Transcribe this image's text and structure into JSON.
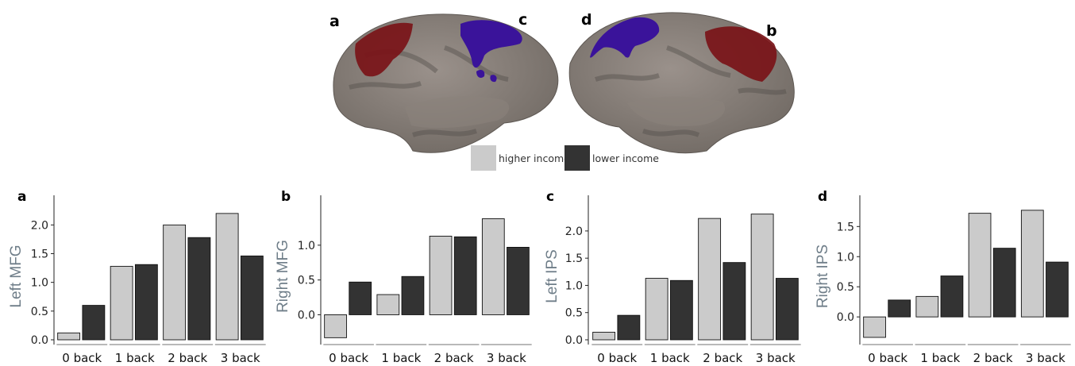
{
  "figure": {
    "brain_labels": [
      "a",
      "c",
      "d",
      "b"
    ],
    "legend": [
      {
        "label": "higher income",
        "color": "#cbcbcb"
      },
      {
        "label": "lower income",
        "color": "#333333"
      }
    ],
    "region_colors": {
      "frontal": "#7a1418",
      "parietal": "#3a139a"
    }
  },
  "chart_data": [
    {
      "type": "bar",
      "panel": "a",
      "ylabel": "Left MFG",
      "categories": [
        "0 back",
        "1 back",
        "2 back",
        "3 back"
      ],
      "series": [
        {
          "name": "higher income",
          "color": "#cbcbcb",
          "values": [
            0.12,
            1.28,
            2.0,
            2.2
          ]
        },
        {
          "name": "lower income",
          "color": "#333333",
          "values": [
            0.6,
            1.31,
            1.78,
            1.46
          ]
        }
      ],
      "ylim": [
        0,
        2.35
      ],
      "yticks": [
        "0.0",
        "0.5",
        "1.0",
        "1.5",
        "2.0"
      ],
      "grid": false
    },
    {
      "type": "bar",
      "panel": "b",
      "ylabel": "Right MFG",
      "categories": [
        "0 back",
        "1 back",
        "2 back",
        "3 back"
      ],
      "series": [
        {
          "name": "higher income",
          "color": "#cbcbcb",
          "values": [
            -0.33,
            0.29,
            1.13,
            1.38
          ]
        },
        {
          "name": "lower income",
          "color": "#333333",
          "values": [
            0.47,
            0.55,
            1.12,
            0.97
          ]
        }
      ],
      "ylim": [
        -0.36,
        1.58
      ],
      "yticks": [
        "0.0",
        "0.5",
        "1.0"
      ],
      "grid": false
    },
    {
      "type": "bar",
      "panel": "c",
      "ylabel": "Left IPS",
      "categories": [
        "0 back",
        "1 back",
        "2 back",
        "3 back"
      ],
      "series": [
        {
          "name": "higher income",
          "color": "#cbcbcb",
          "values": [
            0.14,
            1.13,
            2.23,
            2.31
          ]
        },
        {
          "name": "lower income",
          "color": "#333333",
          "values": [
            0.45,
            1.09,
            1.42,
            1.13
          ]
        }
      ],
      "ylim": [
        0,
        2.48
      ],
      "yticks": [
        "0.0",
        "0.5",
        "1.0",
        "1.5",
        "2.0"
      ],
      "grid": false
    },
    {
      "type": "bar",
      "panel": "d",
      "ylabel": "Right IPS",
      "categories": [
        "0 back",
        "1 back",
        "2 back",
        "3 back"
      ],
      "series": [
        {
          "name": "higher income",
          "color": "#cbcbcb",
          "values": [
            -0.34,
            0.34,
            1.72,
            1.77
          ]
        },
        {
          "name": "lower income",
          "color": "#333333",
          "values": [
            0.28,
            0.68,
            1.14,
            0.91
          ]
        }
      ],
      "ylim": [
        -0.38,
        1.86
      ],
      "yticks": [
        "0.0",
        "0.5",
        "1.0",
        "1.5"
      ],
      "grid": false
    }
  ]
}
